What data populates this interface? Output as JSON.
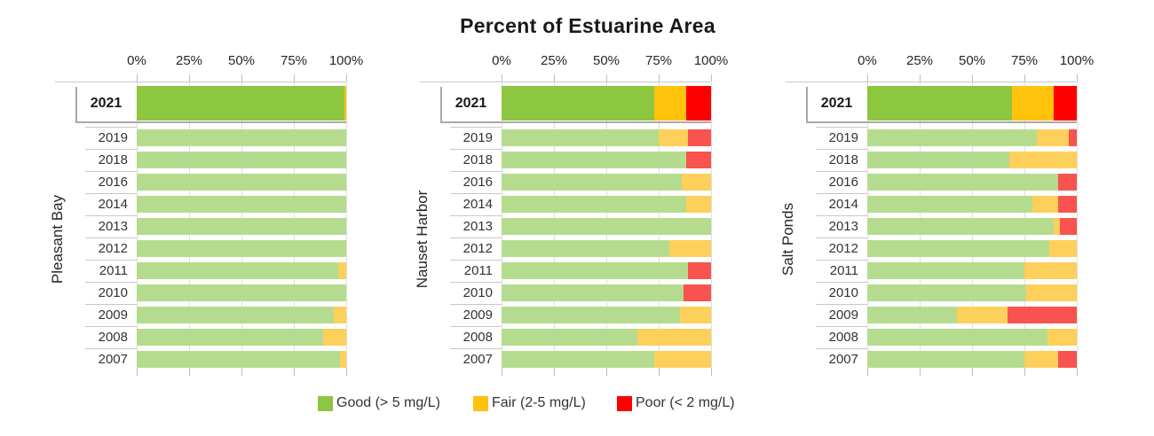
{
  "title": "Percent of Estuarine Area",
  "legend": {
    "items": [
      {
        "key": "good",
        "label": "Good (> 5 mg/L)"
      },
      {
        "key": "fair",
        "label": "Fair (2-5 mg/L)"
      },
      {
        "key": "poor",
        "label": "Poor (< 2 mg/L)"
      }
    ]
  },
  "colors": {
    "good": "#8DC63F",
    "fair": "#FFC20D",
    "poor": "#FE0000",
    "good_muted": "#B5DC8E",
    "fair_muted": "#FDCF5B",
    "poor_muted": "#F8534F"
  },
  "chart_data": {
    "type": "bar",
    "orientation": "horizontal-stacked",
    "title": "Percent of Estuarine Area",
    "x_ticks": [
      "0%",
      "25%",
      "50%",
      "75%",
      "100%"
    ],
    "xlim": [
      0,
      100
    ],
    "unit": "percent",
    "highlight_year": "2021",
    "legend_position": "bottom",
    "series_names": [
      "Good (> 5 mg/L)",
      "Fair (2-5 mg/L)",
      "Poor (< 2 mg/L)"
    ],
    "panels": [
      {
        "name": "Pleasant Bay",
        "rows": [
          {
            "year": "2021",
            "good": 99,
            "fair": 1,
            "poor": 0,
            "highlight": true
          },
          {
            "year": "2019",
            "good": 100,
            "fair": 0,
            "poor": 0
          },
          {
            "year": "2018",
            "good": 100,
            "fair": 0,
            "poor": 0
          },
          {
            "year": "2016",
            "good": 100,
            "fair": 0,
            "poor": 0
          },
          {
            "year": "2014",
            "good": 100,
            "fair": 0,
            "poor": 0
          },
          {
            "year": "2013",
            "good": 100,
            "fair": 0,
            "poor": 0
          },
          {
            "year": "2012",
            "good": 100,
            "fair": 0,
            "poor": 0
          },
          {
            "year": "2011",
            "good": 96,
            "fair": 4,
            "poor": 0
          },
          {
            "year": "2010",
            "good": 100,
            "fair": 0,
            "poor": 0
          },
          {
            "year": "2009",
            "good": 94,
            "fair": 6,
            "poor": 0
          },
          {
            "year": "2008",
            "good": 89,
            "fair": 11,
            "poor": 0
          },
          {
            "year": "2007",
            "good": 97,
            "fair": 3,
            "poor": 0
          }
        ]
      },
      {
        "name": "Nauset Harbor",
        "rows": [
          {
            "year": "2021",
            "good": 73,
            "fair": 15,
            "poor": 12,
            "highlight": true
          },
          {
            "year": "2019",
            "good": 75,
            "fair": 14,
            "poor": 11
          },
          {
            "year": "2018",
            "good": 88,
            "fair": 0,
            "poor": 12
          },
          {
            "year": "2016",
            "good": 86,
            "fair": 14,
            "poor": 0
          },
          {
            "year": "2014",
            "good": 88,
            "fair": 12,
            "poor": 0
          },
          {
            "year": "2013",
            "good": 100,
            "fair": 0,
            "poor": 0
          },
          {
            "year": "2012",
            "good": 80,
            "fair": 20,
            "poor": 0
          },
          {
            "year": "2011",
            "good": 89,
            "fair": 0,
            "poor": 11
          },
          {
            "year": "2010",
            "good": 87,
            "fair": 0,
            "poor": 13
          },
          {
            "year": "2009",
            "good": 85,
            "fair": 15,
            "poor": 0
          },
          {
            "year": "2008",
            "good": 65,
            "fair": 35,
            "poor": 0
          },
          {
            "year": "2007",
            "good": 73,
            "fair": 27,
            "poor": 0
          }
        ]
      },
      {
        "name": "Salt Ponds",
        "rows": [
          {
            "year": "2021",
            "good": 69,
            "fair": 20,
            "poor": 11,
            "highlight": true
          },
          {
            "year": "2019",
            "good": 81,
            "fair": 15,
            "poor": 4
          },
          {
            "year": "2018",
            "good": 68,
            "fair": 32,
            "poor": 0
          },
          {
            "year": "2016",
            "good": 91,
            "fair": 0,
            "poor": 9
          },
          {
            "year": "2014",
            "good": 79,
            "fair": 12,
            "poor": 9
          },
          {
            "year": "2013",
            "good": 89,
            "fair": 3,
            "poor": 8
          },
          {
            "year": "2012",
            "good": 87,
            "fair": 13,
            "poor": 0
          },
          {
            "year": "2011",
            "good": 75,
            "fair": 25,
            "poor": 0
          },
          {
            "year": "2010",
            "good": 76,
            "fair": 24,
            "poor": 0
          },
          {
            "year": "2009",
            "good": 43,
            "fair": 24,
            "poor": 33
          },
          {
            "year": "2008",
            "good": 86,
            "fair": 14,
            "poor": 0
          },
          {
            "year": "2007",
            "good": 75,
            "fair": 16,
            "poor": 9
          }
        ]
      }
    ]
  }
}
